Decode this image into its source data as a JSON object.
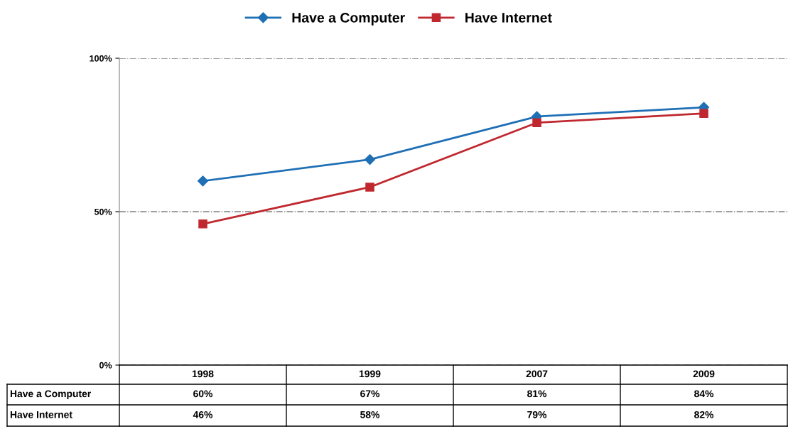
{
  "chart_data": {
    "type": "line",
    "categories": [
      "1998",
      "1999",
      "2007",
      "2009"
    ],
    "series": [
      {
        "name": "Have a Computer",
        "color": "#1f6fb5",
        "marker": "diamond",
        "values": [
          60,
          67,
          81,
          84
        ],
        "value_labels": [
          "60%",
          "67%",
          "81%",
          "84%"
        ]
      },
      {
        "name": "Have Internet",
        "color": "#c0282f",
        "marker": "square",
        "values": [
          46,
          58,
          79,
          82
        ],
        "value_labels": [
          "46%",
          "58%",
          "79%",
          "82%"
        ]
      }
    ],
    "ylim": [
      0,
      100
    ],
    "yticks": [
      {
        "value": 0,
        "label": "0%"
      },
      {
        "value": 50,
        "label": "50%"
      },
      {
        "value": 100,
        "label": "100%"
      }
    ],
    "grid": "y",
    "legend": "top"
  }
}
